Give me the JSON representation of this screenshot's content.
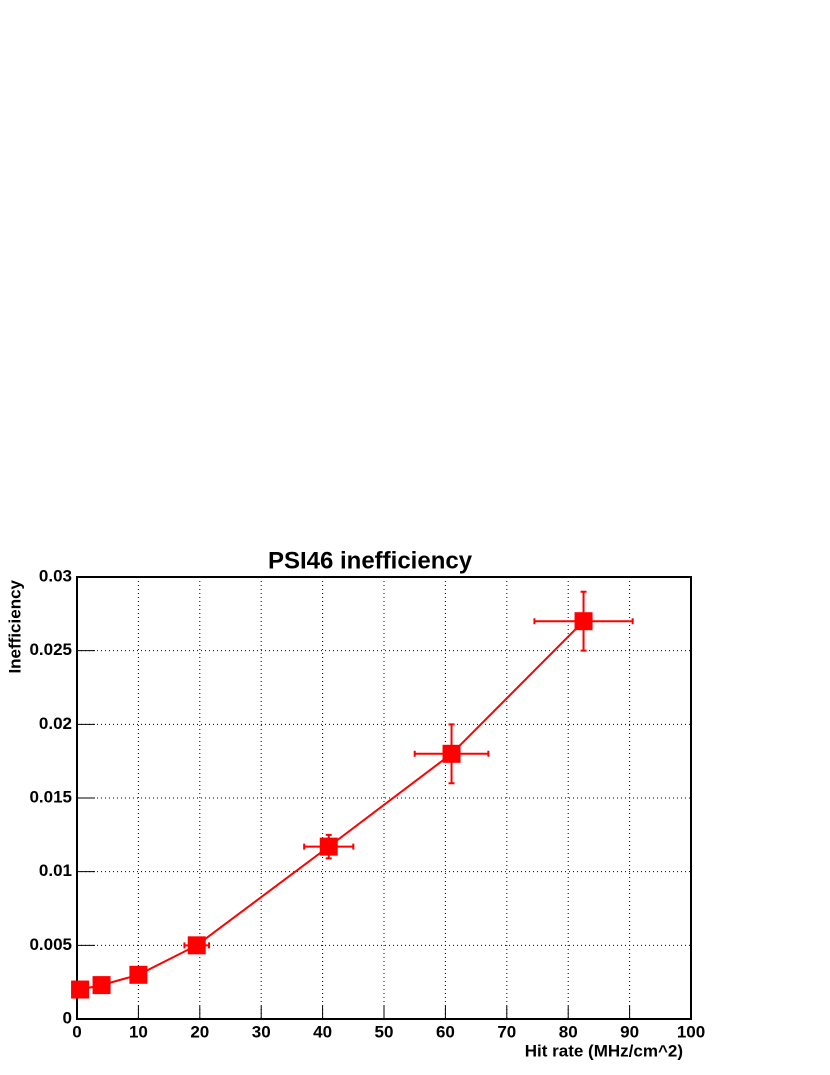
{
  "chart_data": {
    "type": "line",
    "title": "PSI46 inefficiency",
    "x_label": "Hit rate (MHz/cm^2)",
    "y_label": "Inefficiency",
    "x": [
      0.5,
      4,
      10,
      19.5,
      41,
      61,
      82.5
    ],
    "values": [
      0.002,
      0.0023,
      0.003,
      0.005,
      0.0117,
      0.018,
      0.027
    ],
    "x_errors": [
      0.5,
      0.5,
      0.5,
      2,
      4,
      6,
      8
    ],
    "y_errors": [
      0.0002,
      0.0002,
      0.0002,
      0.0003,
      0.0008,
      0.002,
      0.002
    ],
    "color": "#ff0000",
    "xlim": [
      0,
      100
    ],
    "xticks": [
      0,
      10,
      20,
      30,
      40,
      50,
      60,
      70,
      80,
      90,
      100
    ],
    "ylim": [
      0,
      0.03
    ],
    "yticks": [
      0,
      0.005,
      0.01,
      0.015,
      0.02,
      0.025,
      0.03
    ],
    "grid": true
  }
}
